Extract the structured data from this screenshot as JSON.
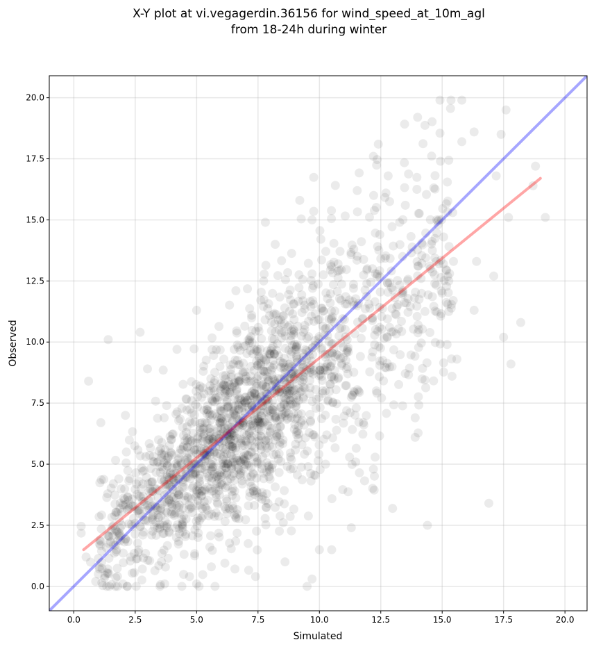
{
  "chart_data": {
    "type": "scatter",
    "title_line1": "X-Y plot at vi.vegagerdin.36156 for wind_speed_at_10m_agl",
    "title_line2": "from 18-24h during winter",
    "xlabel": "Simulated",
    "ylabel": "Observed",
    "xlim": [
      -1.0,
      20.9
    ],
    "ylim": [
      -1.0,
      20.9
    ],
    "xticks": [
      "0.0",
      "2.5",
      "5.0",
      "7.5",
      "10.0",
      "12.5",
      "15.0",
      "17.5",
      "20.0"
    ],
    "yticks": [
      "0.0",
      "2.5",
      "5.0",
      "7.5",
      "10.0",
      "12.5",
      "15.0",
      "17.5",
      "20.0"
    ],
    "grid": true,
    "point_color": "#000000",
    "point_alpha": 0.08,
    "approx_point_count": 2000,
    "series": [
      {
        "name": "",
        "kind": "scatter",
        "points": [
          [
            0.6,
            8.4
          ],
          [
            1.4,
            10.1
          ],
          [
            2.7,
            10.4
          ],
          [
            5.0,
            11.3
          ],
          [
            6.6,
            12.1
          ],
          [
            8.2,
            14.0
          ],
          [
            9.2,
            15.8
          ],
          [
            9.7,
            15.0
          ],
          [
            12.2,
            17.6
          ],
          [
            12.4,
            18.1
          ],
          [
            14.0,
            19.2
          ],
          [
            15.8,
            19.9
          ],
          [
            17.6,
            19.5
          ],
          [
            16.3,
            18.6
          ],
          [
            17.4,
            18.5
          ],
          [
            15.8,
            18.2
          ],
          [
            18.8,
            17.2
          ],
          [
            17.2,
            16.8
          ],
          [
            18.7,
            16.4
          ],
          [
            19.2,
            15.1
          ],
          [
            17.7,
            15.1
          ],
          [
            18.2,
            10.8
          ],
          [
            17.8,
            9.1
          ],
          [
            17.5,
            10.2
          ],
          [
            16.9,
            3.4
          ],
          [
            14.4,
            2.5
          ],
          [
            13.9,
            6.1
          ],
          [
            13.9,
            6.9
          ],
          [
            12.2,
            4.8
          ],
          [
            11.3,
            2.4
          ],
          [
            10.5,
            1.5
          ],
          [
            10.0,
            1.5
          ],
          [
            9.7,
            0.3
          ],
          [
            9.5,
            0.0
          ],
          [
            7.4,
            0.4
          ],
          [
            8.6,
            1.0
          ],
          [
            5.0,
            0.1
          ],
          [
            3.7,
            0.1
          ],
          [
            2.0,
            0.1
          ],
          [
            1.0,
            0.5
          ],
          [
            0.5,
            1.2
          ],
          [
            1.1,
            6.7
          ],
          [
            2.1,
            7.0
          ],
          [
            3.0,
            8.9
          ],
          [
            4.2,
            9.7
          ],
          [
            15.4,
            8.6
          ],
          [
            15.6,
            9.3
          ],
          [
            16.3,
            11.3
          ],
          [
            15.3,
            12.8
          ],
          [
            14.7,
            12.4
          ],
          [
            17.1,
            12.7
          ],
          [
            16.4,
            13.3
          ],
          [
            13.5,
            15.6
          ],
          [
            12.8,
            16.8
          ],
          [
            11.4,
            13.8
          ],
          [
            7.8,
            14.9
          ]
        ],
        "cluster_note": "dense cloud of ~2000 translucent points concentrated along the diagonal from about (1,2) to (14,14)"
      },
      {
        "name": "",
        "kind": "line",
        "color": "#0000ff",
        "alpha": 0.35,
        "points": [
          [
            -1.0,
            -1.0
          ],
          [
            20.9,
            20.9
          ]
        ]
      },
      {
        "name": "",
        "kind": "line",
        "color": "#ff0000",
        "alpha": 0.35,
        "points": [
          [
            0.4,
            1.5
          ],
          [
            19.0,
            16.7
          ]
        ]
      }
    ]
  }
}
